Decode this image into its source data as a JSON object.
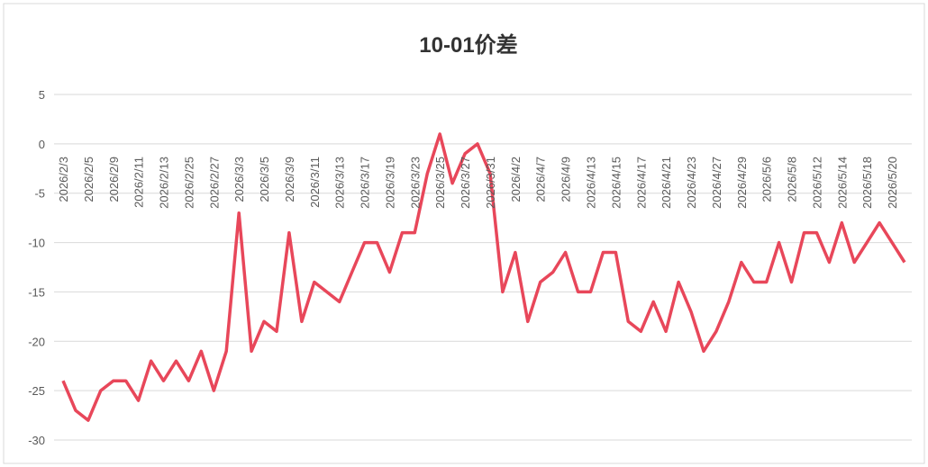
{
  "chart_data": {
    "type": "line",
    "title": "10-01价差",
    "categories": [
      "2026/2/3",
      null,
      "2026/2/5",
      null,
      "2026/2/9",
      null,
      "2026/2/11",
      null,
      "2026/2/13",
      null,
      "2026/2/25",
      null,
      "2026/2/27",
      null,
      "2026/3/3",
      null,
      "2026/3/5",
      null,
      "2026/3/9",
      null,
      "2026/3/11",
      null,
      "2026/3/13",
      null,
      "2026/3/17",
      null,
      "2026/3/19",
      null,
      "2026/3/23",
      null,
      "2026/3/25",
      null,
      "2026/3/27",
      null,
      "2026/3/31",
      null,
      "2026/4/2",
      null,
      "2026/4/7",
      null,
      "2026/4/9",
      null,
      "2026/4/13",
      null,
      "2026/4/15",
      null,
      "2026/4/17",
      null,
      "2026/4/21",
      null,
      "2026/4/23",
      null,
      "2026/4/27",
      null,
      "2026/4/29",
      null,
      "2026/5/6",
      null,
      "2026/5/8",
      null,
      "2026/5/12",
      null,
      "2026/5/14",
      null,
      "2026/5/18",
      null,
      "2026/5/20",
      null
    ],
    "series": [
      {
        "name": "10-01价差",
        "color": "#e8475a",
        "values": [
          -24,
          -27,
          -28,
          -25,
          -24,
          -24,
          -26,
          -22,
          -24,
          -22,
          -24,
          -21,
          -25,
          -21,
          -7,
          -21,
          -18,
          -19,
          -9,
          -18,
          -14,
          -15,
          -16,
          -13,
          -10,
          -10,
          -13,
          -9,
          -9,
          -3,
          1,
          -4,
          -1,
          0,
          -3,
          -15,
          -11,
          -18,
          -14,
          -13,
          -11,
          -15,
          -15,
          -11,
          -11,
          -18,
          -19,
          -16,
          -19,
          -14,
          -17,
          -21,
          -19,
          -16,
          -12,
          -14,
          -14,
          -10,
          -14,
          -9,
          -9,
          -12,
          -8,
          -12,
          -10,
          -8,
          -10,
          -12
        ]
      }
    ],
    "ylim": [
      -30,
      5
    ],
    "yticks": [
      5,
      0,
      -5,
      -10,
      -15,
      -20,
      -25,
      -30
    ],
    "grid": true,
    "legend": false
  }
}
